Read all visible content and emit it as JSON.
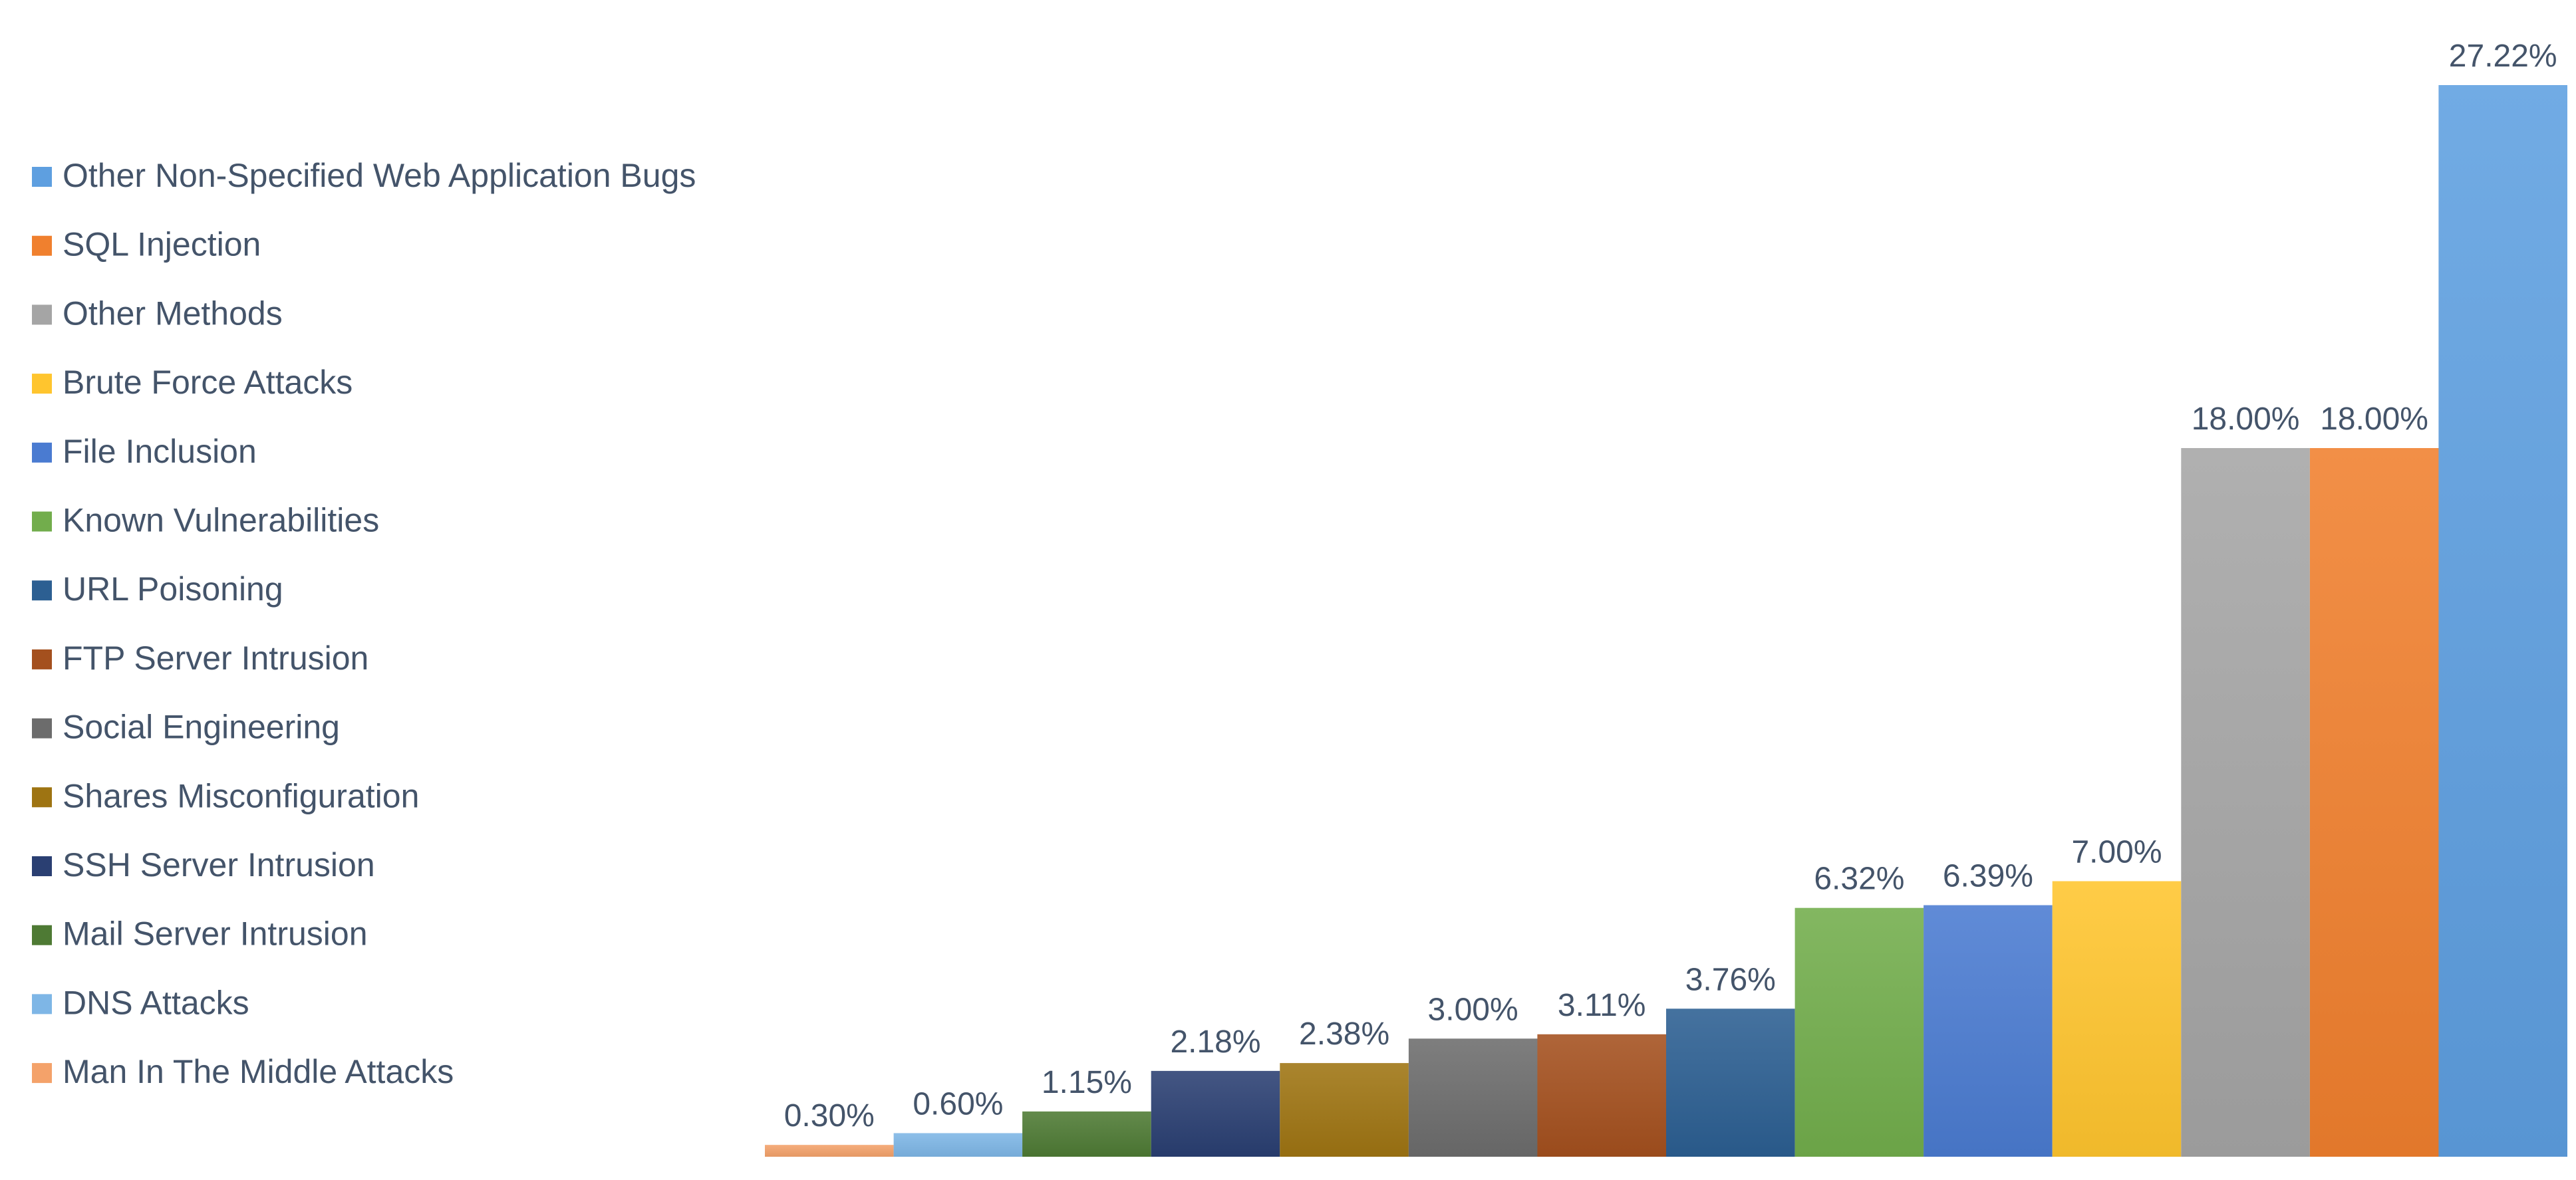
{
  "chart_data": {
    "type": "bar",
    "title": "",
    "xlabel": "",
    "ylabel": "",
    "ylim": [
      0,
      27.22
    ],
    "grid": false,
    "legend_position": "left",
    "categories": [
      "Man In The Middle Attacks",
      "DNS Attacks",
      "Mail Server Intrusion",
      "SSH Server Intrusion",
      "Shares Misconfiguration",
      "Social Engineering",
      "FTP Server Intrusion",
      "URL Poisoning",
      "Known Vulnerabilities",
      "File Inclusion",
      "Brute Force Attacks",
      "Other Methods",
      "SQL Injection",
      "Other Non-Specified Web Application Bugs"
    ],
    "values": [
      0.3,
      0.6,
      1.15,
      2.18,
      2.38,
      3.0,
      3.11,
      3.76,
      6.32,
      6.39,
      7.0,
      18.0,
      18.0,
      27.22
    ],
    "data_labels": [
      "0.30%",
      "0.60%",
      "1.15%",
      "2.18%",
      "2.38%",
      "3.00%",
      "3.11%",
      "3.76%",
      "6.32%",
      "6.39%",
      "7.00%",
      "18.00%",
      "18.00%",
      "27.22%"
    ],
    "colors": [
      "#f4a26a",
      "#7eb6e6",
      "#4e7a34",
      "#2a3f72",
      "#9e7412",
      "#6c6c6c",
      "#a4501e",
      "#2c5f92",
      "#72ad4c",
      "#4a7bd1",
      "#ffc52e",
      "#a5a5a5",
      "#f0802e",
      "#5e9fe0"
    ],
    "legend": [
      "Other Non-Specified Web Application Bugs",
      "SQL Injection",
      "Other Methods",
      "Brute Force Attacks",
      "File Inclusion",
      "Known Vulnerabilities",
      "URL Poisoning",
      "FTP Server Intrusion",
      "Social Engineering",
      "Shares Misconfiguration",
      "SSH Server Intrusion",
      "Mail Server Intrusion",
      "DNS Attacks",
      "Man In The Middle Attacks"
    ]
  }
}
